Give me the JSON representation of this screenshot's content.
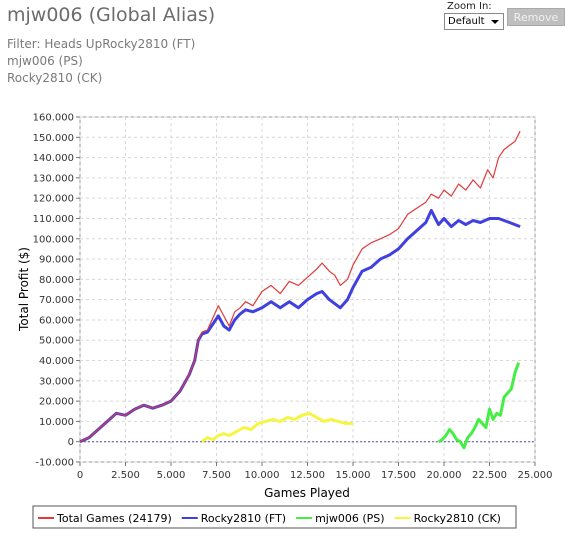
{
  "header": {
    "title": "mjw006 (Global Alias)",
    "filter_lines": [
      "Filter: Heads UpRocky2810 (FT)",
      "mjw006 (PS)",
      "Rocky2810 (CK)"
    ],
    "zoom_label": "Zoom In:",
    "zoom_value": "Default",
    "remove_label": "Remove"
  },
  "chart_data": {
    "type": "line",
    "xlabel": "Games Played",
    "ylabel": "Total Profit ($)",
    "xlim": [
      0,
      25000
    ],
    "ylim": [
      -10000,
      160000
    ],
    "xticks": [
      0,
      2500,
      5000,
      7500,
      10000,
      12500,
      15000,
      17500,
      20000,
      22500,
      25000
    ],
    "xtick_labels": [
      "0",
      "2.500",
      "5.000",
      "7.500",
      "10.000",
      "12.500",
      "15.000",
      "17.500",
      "20.000",
      "22.500",
      "25.000"
    ],
    "yticks": [
      -10000,
      0,
      10000,
      20000,
      30000,
      40000,
      50000,
      60000,
      70000,
      80000,
      90000,
      100000,
      110000,
      120000,
      130000,
      140000,
      150000,
      160000
    ],
    "ytick_labels": [
      "-10.000",
      "0",
      "10.000",
      "20.000",
      "30.000",
      "40.000",
      "50.000",
      "60.000",
      "70.000",
      "80.000",
      "90.000",
      "100.000",
      "110.000",
      "120.000",
      "130.000",
      "140.000",
      "150.000",
      "160.000"
    ],
    "grid": true,
    "legend_position": "bottom",
    "reference_line": {
      "y": 0,
      "color": "#5555aa"
    },
    "series": [
      {
        "name": "Total Games (24179)",
        "color": "#e03a3a",
        "width": 1.2,
        "x": [
          0,
          500,
          1000,
          1500,
          2000,
          2500,
          3000,
          3500,
          4000,
          4500,
          5000,
          5500,
          6000,
          6300,
          6500,
          6700,
          7000,
          7300,
          7600,
          7900,
          8200,
          8500,
          8800,
          9100,
          9500,
          10000,
          10500,
          11000,
          11500,
          12000,
          12500,
          13000,
          13300,
          13700,
          14000,
          14300,
          14700,
          15000,
          15500,
          16000,
          16500,
          17000,
          17500,
          18000,
          18500,
          19000,
          19300,
          19700,
          20000,
          20400,
          20800,
          21200,
          21600,
          22000,
          22400,
          22700,
          23000,
          23300,
          23600,
          23900,
          24179
        ],
        "y": [
          0,
          2000,
          6000,
          10000,
          14000,
          13000,
          16000,
          18000,
          16500,
          18000,
          20000,
          25000,
          33000,
          40000,
          50000,
          54000,
          55000,
          61000,
          67000,
          62000,
          57000,
          64000,
          66000,
          69000,
          67000,
          74000,
          77000,
          73000,
          79000,
          77000,
          81000,
          85000,
          88000,
          84000,
          82000,
          77000,
          80000,
          87000,
          95000,
          98000,
          100000,
          102000,
          105000,
          112000,
          115000,
          118000,
          122000,
          120000,
          124000,
          121000,
          127000,
          124000,
          129000,
          125000,
          134000,
          130000,
          140000,
          144000,
          146000,
          148000,
          153000
        ]
      },
      {
        "name": "Rocky2810 (FT)",
        "color": "#4040e0",
        "width": 3,
        "x": [
          0,
          500,
          1000,
          1500,
          2000,
          2500,
          3000,
          3500,
          4000,
          4500,
          5000,
          5500,
          6000,
          6300,
          6500,
          6700,
          7000,
          7300,
          7600,
          7900,
          8200,
          8500,
          8800,
          9100,
          9500,
          10000,
          10500,
          11000,
          11500,
          12000,
          12500,
          13000,
          13300,
          13700,
          14000,
          14300,
          14700,
          15000,
          15500,
          16000,
          16500,
          17000,
          17500,
          18000,
          18500,
          19000,
          19300,
          19700,
          20000,
          20400,
          20800,
          21200,
          21600,
          22000,
          22500,
          23000,
          23300,
          23600,
          23900,
          24179
        ],
        "y": [
          0,
          2000,
          6000,
          10000,
          14000,
          13000,
          16000,
          18000,
          16500,
          18000,
          20000,
          25000,
          33000,
          40000,
          50000,
          53000,
          54000,
          58000,
          62000,
          57000,
          55000,
          60000,
          63000,
          65000,
          64000,
          66000,
          69000,
          66000,
          69000,
          66000,
          70000,
          73000,
          74000,
          70000,
          68000,
          66000,
          70000,
          76000,
          84000,
          86000,
          90000,
          92000,
          95000,
          100000,
          104000,
          108000,
          114000,
          107000,
          110000,
          106000,
          109000,
          107000,
          109000,
          108000,
          110000,
          110000,
          109000,
          108000,
          107000,
          106000
        ]
      },
      {
        "name": "mjw006 (PS)",
        "color": "#44ee44",
        "width": 3,
        "x": [
          19700,
          19900,
          20100,
          20300,
          20500,
          20700,
          20900,
          21100,
          21300,
          21500,
          21700,
          21900,
          22100,
          22300,
          22500,
          22700,
          22900,
          23100,
          23300,
          23500,
          23700,
          23900,
          24100
        ],
        "y": [
          0,
          1000,
          3000,
          6000,
          4000,
          1000,
          0,
          -3000,
          2000,
          4000,
          7000,
          11000,
          9000,
          7000,
          16000,
          11000,
          14000,
          13000,
          22000,
          24000,
          26000,
          34000,
          39000
        ]
      },
      {
        "name": "Rocky2810 (CK)",
        "color": "#f5f542",
        "width": 3,
        "x": [
          6700,
          7000,
          7300,
          7600,
          7900,
          8200,
          8600,
          9000,
          9400,
          9800,
          10200,
          10600,
          11000,
          11400,
          11800,
          12200,
          12600,
          13000,
          13400,
          13800,
          14200,
          14600,
          15000
        ],
        "y": [
          0,
          2000,
          1000,
          3000,
          4000,
          3000,
          5000,
          7000,
          6000,
          9000,
          10000,
          11000,
          10000,
          12000,
          11000,
          13000,
          14000,
          12000,
          10000,
          11000,
          10000,
          9000,
          9000
        ]
      }
    ]
  }
}
